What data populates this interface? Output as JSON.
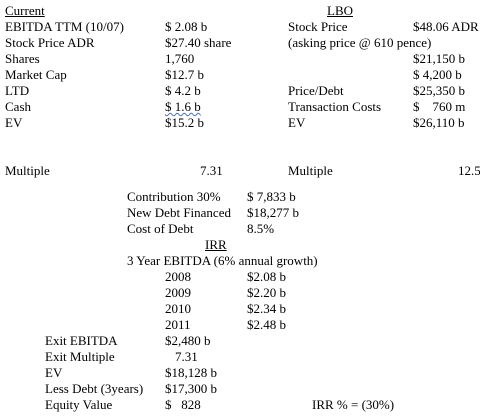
{
  "current": {
    "heading": "Current",
    "rows": [
      {
        "label": "EBITDA TTM (10/07)",
        "value": "$ 2.08 b"
      },
      {
        "label": "Stock Price ADR",
        "value": "$27.40 share"
      },
      {
        "label": "Shares",
        "value": "1,760"
      },
      {
        "label": "Market Cap",
        "value": "$12.7 b"
      },
      {
        "label": "LTD",
        "value": "$ 4.2 b"
      },
      {
        "label": "Cash",
        "value": "$ 1.6 b"
      },
      {
        "label": "EV",
        "value": "$15.2 b"
      }
    ],
    "multiple": {
      "label": "Multiple",
      "value": "7.31"
    }
  },
  "lbo": {
    "heading": "LBO",
    "rows": [
      {
        "label": "Stock Price",
        "value": "$48.06 ADR"
      },
      {
        "label": "(asking price @ 610 pence)"
      },
      {
        "value": "$21,150 b"
      },
      {
        "value": "$ 4,200 b"
      },
      {
        "label": "Price/Debt",
        "value": "$25,350 b"
      },
      {
        "label": "Transaction Costs",
        "value": "$    760 m"
      },
      {
        "label": "EV",
        "value": "$26,110 b"
      }
    ],
    "multiple": {
      "label": "Multiple",
      "value": "12.5"
    }
  },
  "financing": {
    "rows": [
      {
        "label": "Contribution 30%",
        "value": "$ 7,833 b"
      },
      {
        "label": "New Debt Financed",
        "value": "$18,277 b"
      },
      {
        "label": "Cost of Debt",
        "value": "8.5%"
      }
    ]
  },
  "irr": {
    "heading": "IRR",
    "subheading": "3 Year EBITDA (6% annual growth)",
    "years": [
      {
        "year": "2008",
        "value": "$2.08 b"
      },
      {
        "year": "2009",
        "value": "$2.20 b"
      },
      {
        "year": "2010",
        "value": "$2.34 b"
      },
      {
        "year": "2011",
        "value": "$2.48 b"
      }
    ]
  },
  "exit": {
    "rows": [
      {
        "label": "Exit EBITDA",
        "value": "$2,480 b"
      },
      {
        "label": "Exit Multiple",
        "value": "7.31"
      },
      {
        "label": "EV",
        "value": "$18,128 b"
      },
      {
        "label": "Less Debt (3years)",
        "value": "$17,300 b"
      },
      {
        "label": "Equity Value",
        "value": "$   828"
      }
    ],
    "result": "IRR % = (30%)"
  }
}
